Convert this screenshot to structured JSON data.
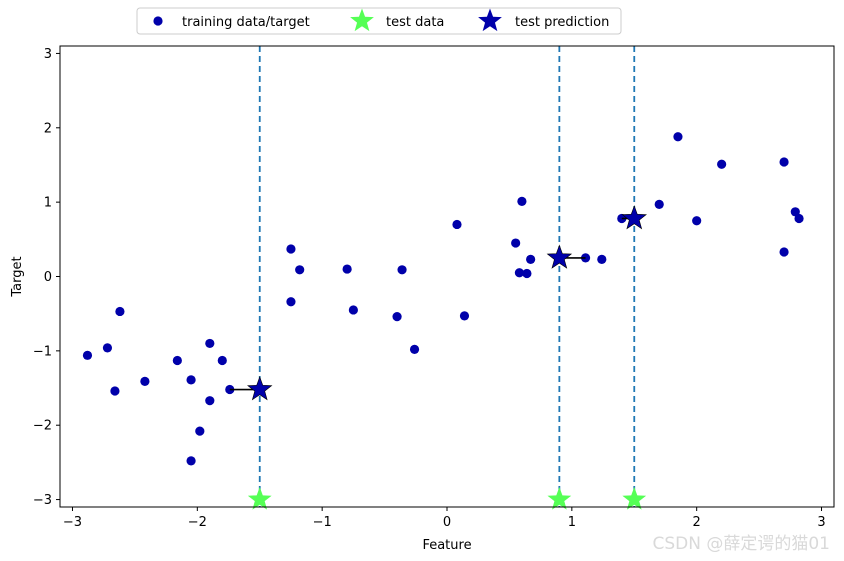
{
  "chart_data": {
    "type": "scatter",
    "xlabel": "Feature",
    "ylabel": "Target",
    "xlim": [
      -3.1,
      3.1
    ],
    "ylim": [
      -3.1,
      3.1
    ],
    "xticks": [
      -3,
      -2,
      -1,
      0,
      1,
      2,
      3
    ],
    "yticks": [
      -3,
      -2,
      -1,
      0,
      1,
      2,
      3
    ],
    "xtick_labels": [
      "−3",
      "−2",
      "−1",
      "0",
      "1",
      "2",
      "3"
    ],
    "ytick_labels": [
      "−3",
      "−2",
      "−1",
      "0",
      "1",
      "2",
      "3"
    ],
    "grid": false,
    "legend_position": "top",
    "colors": {
      "training": "#0000aa",
      "test_data": "#55ff55",
      "prediction": "#0000aa",
      "vlines": "#1f77b4"
    },
    "training_points": [
      {
        "x": -2.88,
        "y": -1.06
      },
      {
        "x": -2.72,
        "y": -0.96
      },
      {
        "x": -2.66,
        "y": -1.54
      },
      {
        "x": -2.62,
        "y": -0.47
      },
      {
        "x": -2.42,
        "y": -1.41
      },
      {
        "x": -2.16,
        "y": -1.13
      },
      {
        "x": -2.05,
        "y": -2.48
      },
      {
        "x": -2.05,
        "y": -1.39
      },
      {
        "x": -1.98,
        "y": -2.08
      },
      {
        "x": -1.9,
        "y": -1.67
      },
      {
        "x": -1.9,
        "y": -0.9
      },
      {
        "x": -1.8,
        "y": -1.13
      },
      {
        "x": -1.74,
        "y": -1.52
      },
      {
        "x": -1.25,
        "y": 0.37
      },
      {
        "x": -1.25,
        "y": -0.34
      },
      {
        "x": -1.18,
        "y": 0.09
      },
      {
        "x": -0.8,
        "y": 0.1
      },
      {
        "x": -0.75,
        "y": -0.45
      },
      {
        "x": -0.4,
        "y": -0.54
      },
      {
        "x": -0.36,
        "y": 0.09
      },
      {
        "x": -0.26,
        "y": -0.98
      },
      {
        "x": 0.08,
        "y": 0.7
      },
      {
        "x": 0.14,
        "y": -0.53
      },
      {
        "x": 0.55,
        "y": 0.45
      },
      {
        "x": 0.58,
        "y": 0.05
      },
      {
        "x": 0.6,
        "y": 1.01
      },
      {
        "x": 0.64,
        "y": 0.04
      },
      {
        "x": 0.67,
        "y": 0.23
      },
      {
        "x": 1.11,
        "y": 0.25
      },
      {
        "x": 1.24,
        "y": 0.23
      },
      {
        "x": 1.4,
        "y": 0.78
      },
      {
        "x": 1.7,
        "y": 0.97
      },
      {
        "x": 1.85,
        "y": 1.88
      },
      {
        "x": 2.0,
        "y": 0.75
      },
      {
        "x": 2.2,
        "y": 1.51
      },
      {
        "x": 2.7,
        "y": 1.54
      },
      {
        "x": 2.7,
        "y": 0.33
      },
      {
        "x": 2.79,
        "y": 0.87
      },
      {
        "x": 2.82,
        "y": 0.78
      }
    ],
    "test_data": [
      {
        "x": -1.5,
        "y": -3.0
      },
      {
        "x": 0.9,
        "y": -3.0
      },
      {
        "x": 1.5,
        "y": -3.0
      }
    ],
    "test_predictions": [
      {
        "x": -1.5,
        "y": -1.52
      },
      {
        "x": 0.9,
        "y": 0.25
      },
      {
        "x": 1.5,
        "y": 0.78
      }
    ],
    "neighbor_links": [
      {
        "x1": -1.5,
        "y1": -1.52,
        "x2": -1.74,
        "y2": -1.52
      },
      {
        "x1": 0.9,
        "y1": 0.25,
        "x2": 1.11,
        "y2": 0.25
      },
      {
        "x1": 1.5,
        "y1": 0.78,
        "x2": 1.4,
        "y2": 0.78
      }
    ],
    "vlines_x": [
      -1.5,
      0.9,
      1.5
    ],
    "legend": [
      {
        "label": "training data/target",
        "marker": "circle"
      },
      {
        "label": "test data",
        "marker": "star-green"
      },
      {
        "label": "test prediction",
        "marker": "star-blue"
      }
    ],
    "watermark": "CSDN @薛定谔的猫01"
  }
}
